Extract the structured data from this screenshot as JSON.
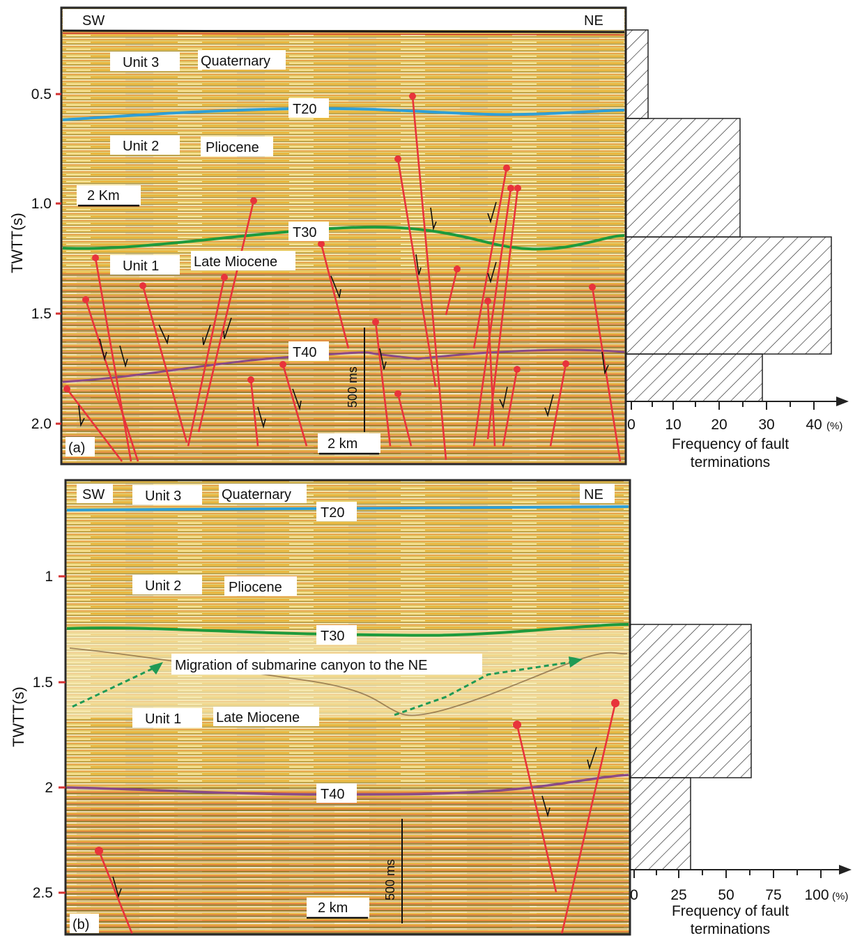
{
  "panel_a": {
    "panel_label": "(a)",
    "dir_left": "SW",
    "dir_right": "NE",
    "axis_label": "TWTT(s)",
    "ticks": [
      "0.5",
      "1.0",
      "1.5",
      "2.0"
    ],
    "units": [
      "Unit 3",
      "Unit 2",
      "Unit 1"
    ],
    "ages": [
      "Quaternary",
      "Pliocene",
      "Late Miocene"
    ],
    "horizons": [
      "T20",
      "T30",
      "T40"
    ],
    "scale_top": "2 Km",
    "scale_bottom": "2 km",
    "vscale": "500 ms",
    "histogram": {
      "ticks": [
        "0",
        "10",
        "20",
        "30",
        "40"
      ],
      "unit": "(%)",
      "xlabel_line1": "Frequency of fault",
      "xlabel_line2": "terminations",
      "bins": [
        {
          "interval_s": [
            0.18,
            0.6
          ],
          "percent": 4.3
        },
        {
          "interval_s": [
            0.6,
            1.15
          ],
          "percent": 24.1
        },
        {
          "interval_s": [
            1.15,
            1.68
          ],
          "percent": 42.2
        },
        {
          "interval_s": [
            1.68,
            1.9
          ],
          "percent": 28.6
        }
      ]
    }
  },
  "panel_b": {
    "panel_label": "(b)",
    "dir_left": "SW",
    "dir_right": "NE",
    "axis_label": "TWTT(s)",
    "ticks": [
      "1",
      "1.5",
      "2",
      "2.5"
    ],
    "units": [
      "Unit 3",
      "Unit 2",
      "Unit 1"
    ],
    "ages": [
      "Quaternary",
      "Pliocene",
      "Late Miocene"
    ],
    "horizons": [
      "T20",
      "T30",
      "T40"
    ],
    "annotation": "Migration of submarine canyon to the NE",
    "scale_bottom": "2 km",
    "vscale": "500 ms",
    "histogram": {
      "ticks": [
        "0",
        "25",
        "50",
        "75",
        "100"
      ],
      "unit": "(%)",
      "xlabel_line1": "Frequency of fault",
      "xlabel_line2": "terminations",
      "bins": [
        {
          "interval_s": [
            1.22,
            1.98
          ],
          "percent": 62.5
        },
        {
          "interval_s": [
            1.98,
            2.62
          ],
          "percent": 31.25
        }
      ]
    }
  },
  "colors": {
    "t20": "#2e9fd6",
    "t30": "#1e9a3c",
    "t40": "#8a4a86",
    "fault": "#e8333b",
    "canyon": "#1f9a55",
    "frame": "#2a2a2a"
  }
}
